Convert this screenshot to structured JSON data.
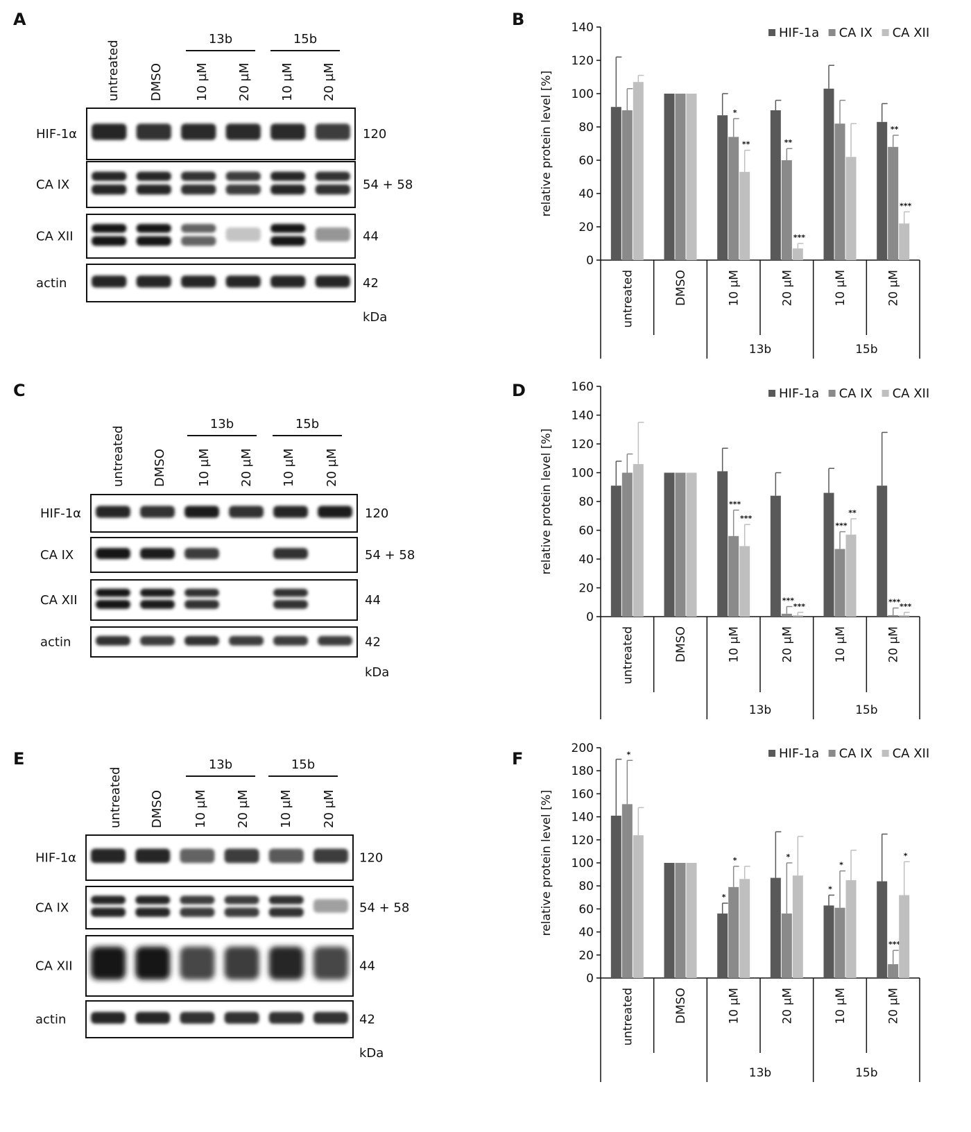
{
  "panels": {
    "A": "A",
    "B": "B",
    "C": "C",
    "D": "D",
    "E": "E",
    "F": "F"
  },
  "blot_groups": [
    {
      "letter_key": "A",
      "lanes": [
        "untreated",
        "DMSO",
        "10 µM",
        "20 µM",
        "10 µM",
        "20 µM"
      ],
      "treatments": [
        "13b",
        "15b"
      ],
      "rows": [
        {
          "label": "HIF-1α",
          "kda": "120"
        },
        {
          "label": "CA IX",
          "kda": "54 + 58"
        },
        {
          "label": "CA XII",
          "kda": "44"
        },
        {
          "label": "actin",
          "kda": "42"
        }
      ],
      "unit": "kDa",
      "band_intensity": [
        [
          0.9,
          0.85,
          0.88,
          0.88,
          0.88,
          0.8
        ],
        [
          0.9,
          0.9,
          0.85,
          0.8,
          0.9,
          0.85
        ],
        [
          1.0,
          1.0,
          0.6,
          0.12,
          1.0,
          0.35
        ],
        [
          0.9,
          0.9,
          0.9,
          0.9,
          0.9,
          0.9
        ]
      ]
    },
    {
      "letter_key": "C",
      "lanes": [
        "untreated",
        "DMSO",
        "10 µM",
        "20 µM",
        "10 µM",
        "20 µM"
      ],
      "treatments": [
        "13b",
        "15b"
      ],
      "rows": [
        {
          "label": "HIF-1α",
          "kda": "120"
        },
        {
          "label": "CA IX",
          "kda": "54 + 58"
        },
        {
          "label": "CA XII",
          "kda": "44"
        },
        {
          "label": "actin",
          "kda": "42"
        }
      ],
      "unit": "kDa",
      "band_intensity": [
        [
          0.9,
          0.85,
          0.95,
          0.85,
          0.9,
          0.95
        ],
        [
          1.0,
          0.95,
          0.8,
          0.0,
          0.85,
          0.0
        ],
        [
          1.0,
          0.95,
          0.85,
          0.0,
          0.85,
          0.0
        ],
        [
          0.85,
          0.8,
          0.85,
          0.8,
          0.8,
          0.8
        ]
      ]
    },
    {
      "letter_key": "E",
      "lanes": [
        "untreated",
        "DMSO",
        "10 µM",
        "20 µM",
        "10 µM",
        "20 µM"
      ],
      "treatments": [
        "13b",
        "15b"
      ],
      "rows": [
        {
          "label": "HIF-1α",
          "kda": "120"
        },
        {
          "label": "CA IX",
          "kda": "54 + 58"
        },
        {
          "label": "CA XII",
          "kda": "44"
        },
        {
          "label": "actin",
          "kda": "42"
        }
      ],
      "unit": "kDa",
      "band_intensity": [
        [
          0.9,
          0.9,
          0.6,
          0.8,
          0.65,
          0.8
        ],
        [
          0.9,
          0.9,
          0.8,
          0.8,
          0.85,
          0.3
        ],
        [
          1.0,
          1.0,
          0.75,
          0.8,
          0.9,
          0.75
        ],
        [
          0.9,
          0.9,
          0.85,
          0.85,
          0.85,
          0.85
        ]
      ]
    }
  ],
  "colors": {
    "hif": "#595959",
    "caix": "#8a8a8a",
    "caxii": "#bfbfbf"
  },
  "chart_data": [
    {
      "type": "bar",
      "letter_key": "B",
      "ylabel": "relative protein level [%]",
      "ylim": [
        0,
        140
      ],
      "yticks": [
        0,
        20,
        40,
        60,
        80,
        100,
        120,
        140
      ],
      "categories": [
        "untreated",
        "DMSO",
        "10 µM",
        "20 µM",
        "10 µM",
        "20 µM"
      ],
      "groups": [
        {
          "label": "13b",
          "from": 2,
          "to": 3
        },
        {
          "label": "15b",
          "from": 4,
          "to": 5
        }
      ],
      "legend": "top-right",
      "series": [
        {
          "name": "HIF-1a",
          "values": [
            92,
            100,
            87,
            90,
            103,
            83
          ],
          "err": [
            30,
            0,
            13,
            6,
            14,
            11
          ],
          "sig": [
            "",
            "",
            "",
            "",
            "",
            ""
          ]
        },
        {
          "name": "CA IX",
          "values": [
            90,
            100,
            74,
            60,
            82,
            68
          ],
          "err": [
            13,
            0,
            11,
            7,
            14,
            7
          ],
          "sig": [
            "",
            "",
            "*",
            "**",
            "",
            "**"
          ]
        },
        {
          "name": "CA XII",
          "values": [
            107,
            100,
            53,
            7,
            62,
            22
          ],
          "err": [
            4,
            0,
            13,
            3,
            20,
            7
          ],
          "sig": [
            "",
            "",
            "**",
            "***",
            "",
            "***"
          ]
        }
      ]
    },
    {
      "type": "bar",
      "letter_key": "D",
      "ylabel": "relative protein level [%]",
      "ylim": [
        0,
        160
      ],
      "yticks": [
        0,
        20,
        40,
        60,
        80,
        100,
        120,
        140,
        160
      ],
      "categories": [
        "untreated",
        "DMSO",
        "10 µM",
        "20 µM",
        "10 µM",
        "20 µM"
      ],
      "groups": [
        {
          "label": "13b",
          "from": 2,
          "to": 3
        },
        {
          "label": "15b",
          "from": 4,
          "to": 5
        }
      ],
      "legend": "top-right",
      "series": [
        {
          "name": "HIF-1a",
          "values": [
            91,
            100,
            101,
            84,
            86,
            91
          ],
          "err": [
            17,
            0,
            16,
            16,
            17,
            37
          ],
          "sig": [
            "",
            "",
            "",
            "",
            "",
            ""
          ]
        },
        {
          "name": "CA IX",
          "values": [
            100,
            100,
            56,
            2,
            47,
            1
          ],
          "err": [
            13,
            0,
            18,
            5,
            12,
            5
          ],
          "sig": [
            "",
            "",
            "***",
            "***",
            "***",
            "***"
          ]
        },
        {
          "name": "CA XII",
          "values": [
            106,
            100,
            49,
            1,
            57,
            1
          ],
          "err": [
            29,
            0,
            15,
            2,
            11,
            2
          ],
          "sig": [
            "",
            "",
            "***",
            "***",
            "**",
            "***"
          ]
        }
      ]
    },
    {
      "type": "bar",
      "letter_key": "F",
      "ylabel": "relative protein level [%]",
      "ylim": [
        0,
        200
      ],
      "yticks": [
        0,
        20,
        40,
        60,
        80,
        100,
        120,
        140,
        160,
        180,
        200
      ],
      "categories": [
        "untreated",
        "DMSO",
        "10 µM",
        "20 µM",
        "10 µM",
        "20 µM"
      ],
      "groups": [
        {
          "label": "13b",
          "from": 2,
          "to": 3
        },
        {
          "label": "15b",
          "from": 4,
          "to": 5
        }
      ],
      "legend": "top-right",
      "series": [
        {
          "name": "HIF-1a",
          "values": [
            141,
            100,
            56,
            87,
            63,
            84
          ],
          "err": [
            49,
            0,
            9,
            40,
            9,
            41
          ],
          "sig": [
            "",
            "",
            "*",
            "",
            "*",
            ""
          ]
        },
        {
          "name": "CA IX",
          "values": [
            151,
            100,
            79,
            56,
            61,
            12
          ],
          "err": [
            38,
            0,
            18,
            44,
            32,
            12
          ],
          "sig": [
            "*",
            "",
            "*",
            "*",
            "*",
            "***"
          ]
        },
        {
          "name": "CA XII",
          "values": [
            124,
            100,
            86,
            89,
            85,
            72
          ],
          "err": [
            24,
            0,
            11,
            34,
            26,
            29
          ],
          "sig": [
            "",
            "",
            "",
            "",
            "",
            "*"
          ]
        }
      ]
    }
  ]
}
